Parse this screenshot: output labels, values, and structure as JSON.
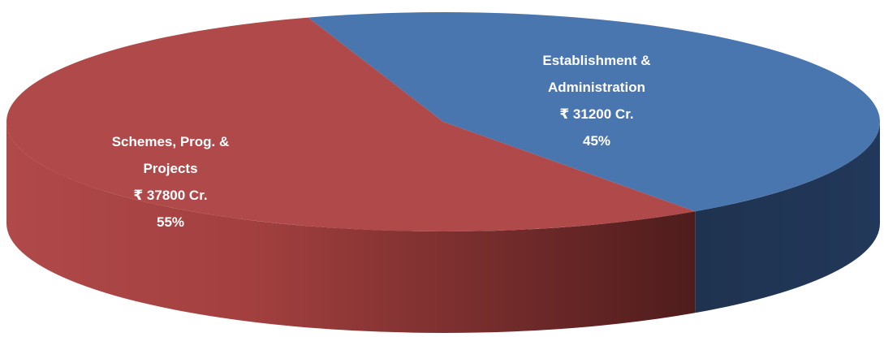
{
  "chart_data": {
    "type": "pie3d",
    "categories": [
      "Establishment & Administration",
      "Schemes, Prog. & Projects"
    ],
    "values": [
      31200,
      37800
    ],
    "value_labels": [
      "₹ 31200 Cr.",
      "₹ 37800 Cr."
    ],
    "percentages": [
      45,
      55
    ],
    "percentage_labels": [
      "45%",
      "55%"
    ],
    "colors": [
      "#4a76b0",
      "#b0494a"
    ]
  }
}
